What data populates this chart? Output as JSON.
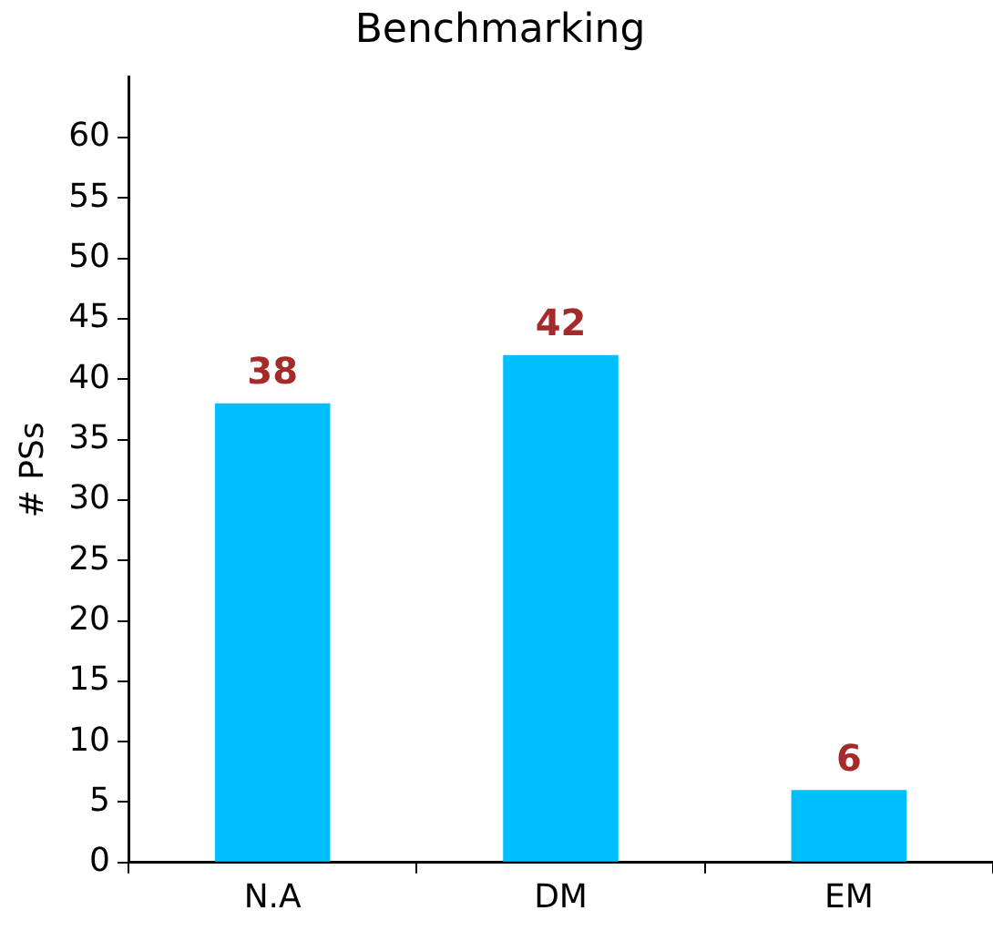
{
  "chart_data": {
    "type": "bar",
    "title": "Benchmarking",
    "ylabel": "# PSs",
    "categories": [
      "N.A",
      "DM",
      "EM"
    ],
    "values": [
      38,
      42,
      6
    ],
    "color": "#00bfff",
    "ylim": [
      0,
      65
    ],
    "yticks": [
      0,
      5,
      10,
      15,
      20,
      25,
      30,
      35,
      40,
      45,
      50,
      55,
      60
    ],
    "data_labels": true,
    "grid": false,
    "legend": false
  }
}
